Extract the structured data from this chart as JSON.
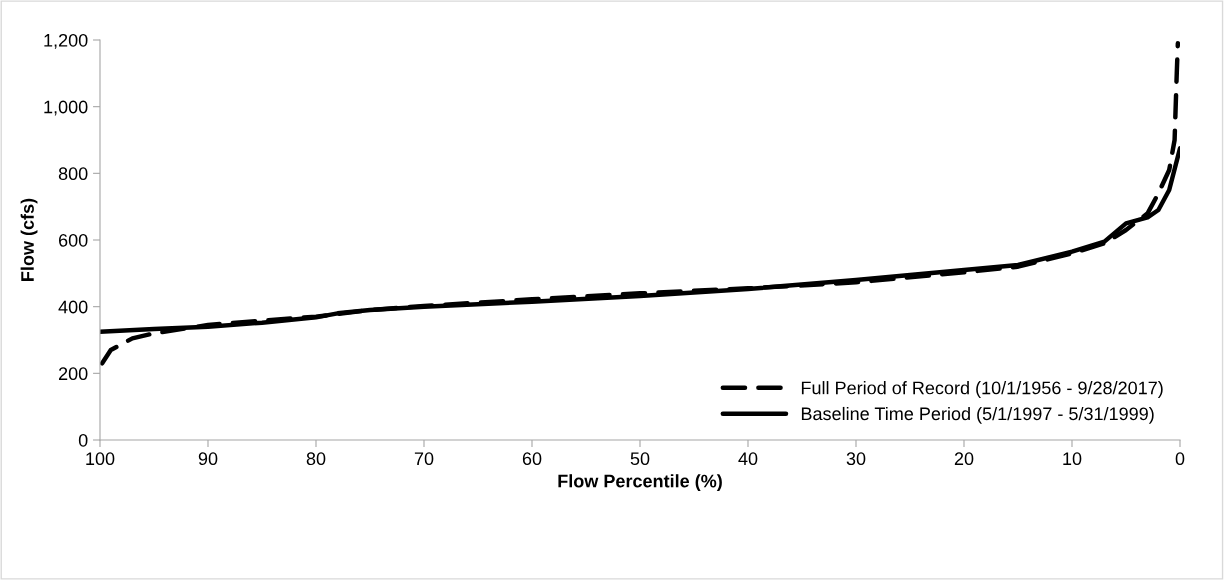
{
  "chart_data": {
    "type": "line",
    "xlabel": "Flow Percentile (%)",
    "ylabel": "Flow (cfs)",
    "xlim": [
      100,
      0
    ],
    "xticks": [
      100,
      90,
      80,
      70,
      60,
      50,
      40,
      30,
      20,
      10,
      0
    ],
    "ylim": [
      0,
      1200
    ],
    "yticks": [
      0,
      200,
      400,
      600,
      800,
      {
        "value": 1000,
        "label": "1,000"
      },
      {
        "value": 1200,
        "label": "1,200"
      }
    ],
    "grid": false,
    "legend": "bottom right",
    "series": [
      {
        "name": "Full Period of Record (10/1/1956 - 9/28/2017)",
        "color": "#000000",
        "line_style": "dashed",
        "x": [
          99.8,
          99,
          97,
          95,
          90,
          85,
          80,
          75,
          70,
          60,
          50,
          40,
          30,
          20,
          15,
          10,
          7,
          5,
          3,
          2,
          1,
          0.5,
          0.3,
          0.2
        ],
        "values": [
          230,
          270,
          305,
          320,
          345,
          358,
          370,
          390,
          402,
          422,
          440,
          455,
          473,
          503,
          520,
          560,
          590,
          630,
          680,
          740,
          810,
          900,
          1100,
          1190
        ]
      },
      {
        "name": "Baseline Time Period (5/1/1997 - 5/31/1999)",
        "color": "#000000",
        "line_style": "solid",
        "x": [
          100,
          95,
          90,
          85,
          80,
          78,
          75,
          70,
          60,
          50,
          40,
          30,
          20,
          15,
          10,
          7,
          5,
          3,
          2,
          1,
          0
        ],
        "values": [
          325,
          333,
          340,
          352,
          368,
          380,
          390,
          400,
          415,
          432,
          453,
          480,
          510,
          525,
          565,
          595,
          650,
          668,
          690,
          750,
          875
        ]
      }
    ]
  }
}
